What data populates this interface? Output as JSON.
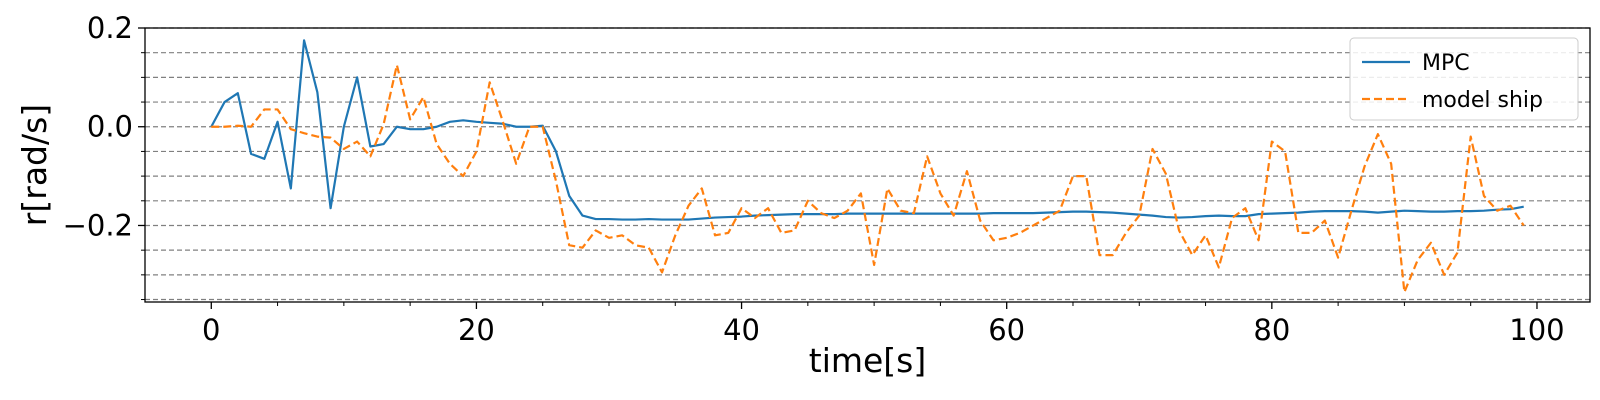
{
  "chart_data": {
    "type": "line",
    "title": "",
    "xlabel": "time[s]",
    "ylabel": "r[rad/s]",
    "xlim": [
      -5,
      104
    ],
    "ylim": [
      -0.355,
      0.2
    ],
    "xticks": [
      0,
      20,
      40,
      60,
      80,
      100
    ],
    "xtick_labels": [
      "0",
      "20",
      "40",
      "60",
      "80",
      "100"
    ],
    "yticks": [
      0.2,
      0.0,
      -0.2
    ],
    "ytick_labels": [
      "0.2",
      "0.0",
      "−0.2"
    ],
    "grid": "horizontal dashed, minor + major",
    "legend_position": "top-right",
    "colors": {
      "MPC": "#1f77b4",
      "model ship": "#ff7f0e",
      "grid": "#808080"
    },
    "series": [
      {
        "name": "MPC",
        "style": "solid",
        "x": [
          0,
          1,
          2,
          3,
          4,
          5,
          6,
          7,
          8,
          9,
          10,
          11,
          12,
          13,
          14,
          15,
          16,
          17,
          18,
          19,
          20,
          21,
          22,
          23,
          24,
          25,
          26,
          27,
          28,
          29,
          30,
          31,
          32,
          33,
          34,
          35,
          36,
          37,
          38,
          39,
          40,
          41,
          42,
          43,
          44,
          45,
          46,
          47,
          48,
          49,
          50,
          51,
          52,
          53,
          54,
          55,
          56,
          57,
          58,
          59,
          60,
          61,
          62,
          63,
          64,
          65,
          66,
          67,
          68,
          69,
          70,
          71,
          72,
          73,
          74,
          75,
          76,
          77,
          78,
          79,
          80,
          81,
          82,
          83,
          84,
          85,
          86,
          87,
          88,
          89,
          90,
          91,
          92,
          93,
          94,
          95,
          96,
          97,
          98,
          99
        ],
        "values": [
          0.0,
          0.05,
          0.068,
          -0.055,
          -0.065,
          0.01,
          -0.125,
          0.175,
          0.07,
          -0.165,
          0.0,
          0.1,
          -0.04,
          -0.035,
          0.0,
          -0.005,
          -0.005,
          0.0,
          0.01,
          0.013,
          0.01,
          0.008,
          0.006,
          0.0,
          0.0,
          0.002,
          -0.05,
          -0.14,
          -0.18,
          -0.187,
          -0.187,
          -0.188,
          -0.188,
          -0.187,
          -0.188,
          -0.188,
          -0.188,
          -0.186,
          -0.184,
          -0.183,
          -0.182,
          -0.18,
          -0.179,
          -0.178,
          -0.177,
          -0.177,
          -0.177,
          -0.177,
          -0.176,
          -0.176,
          -0.176,
          -0.176,
          -0.176,
          -0.176,
          -0.176,
          -0.176,
          -0.176,
          -0.176,
          -0.176,
          -0.175,
          -0.175,
          -0.175,
          -0.175,
          -0.174,
          -0.173,
          -0.172,
          -0.172,
          -0.173,
          -0.174,
          -0.176,
          -0.178,
          -0.18,
          -0.183,
          -0.184,
          -0.183,
          -0.181,
          -0.18,
          -0.181,
          -0.181,
          -0.177,
          -0.176,
          -0.175,
          -0.174,
          -0.172,
          -0.171,
          -0.171,
          -0.171,
          -0.172,
          -0.174,
          -0.172,
          -0.17,
          -0.171,
          -0.172,
          -0.172,
          -0.171,
          -0.171,
          -0.17,
          -0.168,
          -0.167,
          -0.162
        ]
      },
      {
        "name": "model ship",
        "style": "dashed",
        "x": [
          0,
          1,
          2,
          3,
          4,
          5,
          6,
          7,
          8,
          9,
          10,
          11,
          12,
          13,
          14,
          15,
          16,
          17,
          18,
          19,
          20,
          21,
          22,
          23,
          24,
          25,
          26,
          27,
          28,
          29,
          30,
          31,
          32,
          33,
          34,
          35,
          36,
          37,
          38,
          39,
          40,
          41,
          42,
          43,
          44,
          45,
          46,
          47,
          48,
          49,
          50,
          51,
          52,
          53,
          54,
          55,
          56,
          57,
          58,
          59,
          60,
          61,
          62,
          63,
          64,
          65,
          66,
          67,
          68,
          69,
          70,
          71,
          72,
          73,
          74,
          75,
          76,
          77,
          78,
          79,
          80,
          81,
          82,
          83,
          84,
          85,
          86,
          87,
          88,
          89,
          90,
          91,
          92,
          93,
          94,
          95,
          96,
          97,
          98,
          99
        ],
        "values": [
          0.0,
          0.0,
          0.002,
          0.0,
          0.035,
          0.035,
          -0.005,
          -0.013,
          -0.02,
          -0.022,
          -0.045,
          -0.03,
          -0.06,
          0.005,
          0.125,
          0.015,
          0.06,
          -0.035,
          -0.075,
          -0.1,
          -0.05,
          0.09,
          0.01,
          -0.075,
          0.0,
          0.0,
          -0.11,
          -0.24,
          -0.245,
          -0.21,
          -0.225,
          -0.22,
          -0.24,
          -0.245,
          -0.295,
          -0.22,
          -0.16,
          -0.125,
          -0.22,
          -0.215,
          -0.165,
          -0.185,
          -0.165,
          -0.215,
          -0.21,
          -0.15,
          -0.175,
          -0.185,
          -0.17,
          -0.135,
          -0.28,
          -0.125,
          -0.17,
          -0.175,
          -0.06,
          -0.135,
          -0.18,
          -0.09,
          -0.19,
          -0.23,
          -0.225,
          -0.215,
          -0.2,
          -0.185,
          -0.17,
          -0.1,
          -0.1,
          -0.26,
          -0.26,
          -0.215,
          -0.18,
          -0.045,
          -0.095,
          -0.21,
          -0.26,
          -0.22,
          -0.285,
          -0.185,
          -0.165,
          -0.23,
          -0.03,
          -0.05,
          -0.215,
          -0.215,
          -0.19,
          -0.265,
          -0.17,
          -0.08,
          -0.015,
          -0.075,
          -0.335,
          -0.27,
          -0.235,
          -0.3,
          -0.255,
          -0.02,
          -0.14,
          -0.17,
          -0.16,
          -0.2
        ]
      }
    ]
  }
}
